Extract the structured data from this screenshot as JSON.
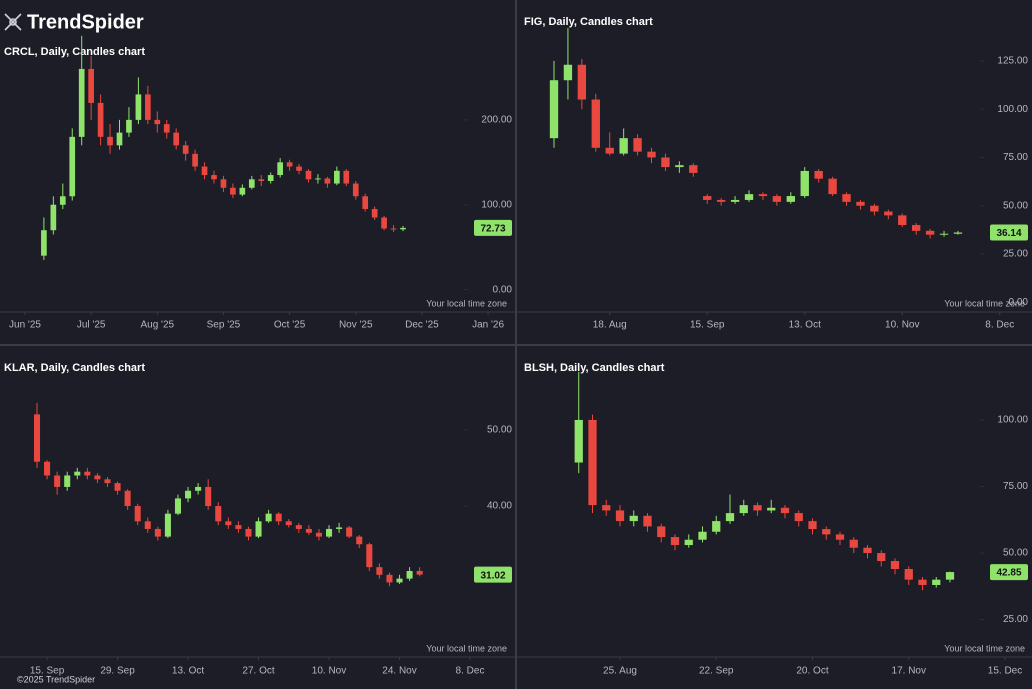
{
  "brand": "TrendSpider",
  "copyright": "©2025 TrendSpider",
  "chart_data": [
    {
      "type": "candlestick",
      "title": "CRCL, Daily, Candles chart",
      "note": "Your local time zone",
      "up_color": "#8fe36b",
      "down_color": "#e8483f",
      "last_price": 72.73,
      "ylim": [
        -24,
        300
      ],
      "yticks": [
        {
          "value": 0,
          "label": "0.00"
        },
        {
          "value": 100,
          "label": "100.00"
        },
        {
          "value": 200,
          "label": "200.00"
        }
      ],
      "categories": [
        "Jun '25",
        null,
        null,
        null,
        null,
        null,
        null,
        "Jul '25",
        null,
        null,
        null,
        null,
        null,
        null,
        "Aug '25",
        null,
        null,
        null,
        null,
        null,
        null,
        "Sep '25",
        null,
        null,
        null,
        null,
        null,
        null,
        "Oct '25",
        null,
        null,
        null,
        null,
        null,
        null,
        "Nov '25",
        null,
        null,
        null,
        null,
        null,
        null,
        "Dec '25",
        null,
        null,
        null,
        null,
        null,
        null,
        "Jan '26"
      ],
      "candles": [
        null,
        null,
        [
          40,
          85,
          35,
          70
        ],
        [
          70,
          110,
          65,
          100
        ],
        [
          100,
          125,
          95,
          110
        ],
        [
          110,
          190,
          105,
          180
        ],
        [
          180,
          299,
          170,
          260
        ],
        [
          260,
          275,
          200,
          220
        ],
        [
          220,
          230,
          170,
          180
        ],
        [
          180,
          195,
          160,
          170
        ],
        [
          170,
          200,
          165,
          185
        ],
        [
          185,
          215,
          180,
          200
        ],
        [
          200,
          250,
          195,
          230
        ],
        [
          230,
          240,
          195,
          200
        ],
        [
          200,
          210,
          185,
          195
        ],
        [
          195,
          200,
          178,
          185
        ],
        [
          185,
          190,
          165,
          170
        ],
        [
          170,
          175,
          152,
          160
        ],
        [
          160,
          165,
          140,
          145
        ],
        [
          145,
          150,
          130,
          135
        ],
        [
          135,
          140,
          125,
          130
        ],
        [
          130,
          134,
          115,
          120
        ],
        [
          120,
          125,
          108,
          112
        ],
        [
          112,
          124,
          110,
          120
        ],
        [
          120,
          134,
          118,
          130
        ],
        [
          130,
          135,
          122,
          128
        ],
        [
          128,
          138,
          125,
          135
        ],
        [
          135,
          155,
          132,
          150
        ],
        [
          150,
          153,
          140,
          145
        ],
        [
          145,
          148,
          136,
          140
        ],
        [
          140,
          142,
          126,
          130
        ],
        [
          130,
          136,
          125,
          131
        ],
        [
          131,
          133,
          120,
          125
        ],
        [
          125,
          145,
          123,
          140
        ],
        [
          140,
          142,
          122,
          125
        ],
        [
          125,
          128,
          106,
          110
        ],
        [
          110,
          113,
          92,
          95
        ],
        [
          95,
          98,
          82,
          85
        ],
        [
          85,
          87,
          70,
          72
        ],
        [
          72,
          76,
          68,
          71
        ],
        [
          71,
          75,
          69,
          72.73
        ],
        null,
        null,
        null,
        null,
        null,
        null,
        null,
        null,
        null
      ]
    },
    {
      "type": "candlestick",
      "title": "FIG, Daily, Candles chart",
      "note": "Your local time zone",
      "up_color": "#8fe36b",
      "down_color": "#e8483f",
      "last_price": 36.14,
      "ylim": [
        -4,
        141
      ],
      "yticks": [
        {
          "value": 0,
          "label": "0.00"
        },
        {
          "value": 25,
          "label": "25.00"
        },
        {
          "value": 50,
          "label": "50.00"
        },
        {
          "value": 75,
          "label": "75.00"
        },
        {
          "value": 100,
          "label": "100.00"
        },
        {
          "value": 125,
          "label": "125.00"
        }
      ],
      "categories": [
        null,
        null,
        null,
        null,
        "18. Aug",
        null,
        null,
        null,
        null,
        null,
        null,
        "15. Sep",
        null,
        null,
        null,
        null,
        null,
        null,
        "13. Oct",
        null,
        null,
        null,
        null,
        null,
        null,
        "10. Nov",
        null,
        null,
        null,
        null,
        null,
        null,
        "8. Dec"
      ],
      "candles": [
        [
          85,
          125,
          80,
          115
        ],
        [
          115,
          142,
          105,
          123
        ],
        [
          123,
          126,
          100,
          105
        ],
        [
          105,
          108,
          78,
          80
        ],
        [
          80,
          88,
          76,
          77
        ],
        [
          77,
          90,
          76,
          85
        ],
        [
          85,
          87,
          76,
          78
        ],
        [
          78,
          80,
          72,
          75
        ],
        [
          75,
          77,
          68,
          70
        ],
        [
          70,
          73,
          67,
          71
        ],
        [
          71,
          72,
          65,
          67
        ],
        [
          55,
          56,
          51,
          53
        ],
        [
          53,
          54,
          50,
          52
        ],
        [
          52,
          55,
          51,
          53
        ],
        [
          53,
          58,
          52,
          56
        ],
        [
          56,
          57,
          53,
          55
        ],
        [
          55,
          56,
          50,
          52
        ],
        [
          52,
          57,
          51,
          55
        ],
        [
          55,
          70,
          54,
          68
        ],
        [
          68,
          69,
          62,
          64
        ],
        [
          64,
          65,
          55,
          56
        ],
        [
          56,
          57,
          50,
          52
        ],
        [
          52,
          53,
          48,
          50
        ],
        [
          50,
          51,
          45,
          47
        ],
        [
          47,
          48,
          43,
          45
        ],
        [
          45,
          46,
          39,
          40
        ],
        [
          40,
          41,
          35,
          37
        ],
        [
          37,
          38,
          33,
          35
        ],
        [
          35,
          37,
          34,
          35.5
        ],
        [
          35.5,
          37,
          35,
          36.14
        ],
        null,
        null,
        null
      ]
    },
    {
      "type": "candlestick",
      "title": "KLAR, Daily, Candles chart",
      "note": "Your local time zone",
      "up_color": "#8fe36b",
      "down_color": "#e8483f",
      "last_price": 31.02,
      "ylim": [
        20.5,
        56.5
      ],
      "yticks": [
        {
          "value": 40,
          "label": "40.00"
        },
        {
          "value": 50,
          "label": "50.00"
        }
      ],
      "categories": [
        null,
        "15. Sep",
        null,
        null,
        null,
        null,
        null,
        null,
        "29. Sep",
        null,
        null,
        null,
        null,
        null,
        null,
        "13. Oct",
        null,
        null,
        null,
        null,
        null,
        null,
        "27. Oct",
        null,
        null,
        null,
        null,
        null,
        null,
        "10. Nov",
        null,
        null,
        null,
        null,
        null,
        null,
        "24. Nov",
        null,
        null,
        null,
        null,
        null,
        null,
        "8. Dec",
        null
      ],
      "candles": [
        [
          52,
          53.5,
          45,
          45.8
        ],
        [
          45.8,
          46,
          43.5,
          44
        ],
        [
          44,
          44.5,
          41.5,
          42.5
        ],
        [
          42.5,
          44.5,
          42,
          44
        ],
        [
          44,
          45,
          43.5,
          44.5
        ],
        [
          44.5,
          45,
          43.5,
          44
        ],
        [
          44,
          44.3,
          43,
          43.5
        ],
        [
          43.5,
          43.8,
          42.5,
          43
        ],
        [
          43,
          43.2,
          41.5,
          42
        ],
        [
          42,
          42.2,
          39.5,
          40
        ],
        [
          40,
          40.3,
          37.5,
          38
        ],
        [
          38,
          38.5,
          36.5,
          37
        ],
        [
          37,
          37.3,
          35.5,
          36
        ],
        [
          36,
          39.5,
          35.8,
          39
        ],
        [
          39,
          41.5,
          38.8,
          41
        ],
        [
          41,
          42.5,
          40.5,
          42
        ],
        [
          42,
          43,
          41.5,
          42.5
        ],
        [
          42.5,
          43.5,
          39.5,
          40
        ],
        [
          40,
          40.5,
          37.5,
          38
        ],
        [
          38,
          38.5,
          37,
          37.5
        ],
        [
          37.5,
          38,
          36.5,
          37
        ],
        [
          37,
          37.3,
          35.5,
          36
        ],
        [
          36,
          38.5,
          35.8,
          38
        ],
        [
          38,
          39.5,
          37.8,
          39
        ],
        [
          39,
          39.2,
          37.5,
          38
        ],
        [
          38,
          38.3,
          37.2,
          37.5
        ],
        [
          37.5,
          37.8,
          36.5,
          37
        ],
        [
          37,
          37.5,
          36.2,
          36.5
        ],
        [
          36.5,
          37,
          35.5,
          36
        ],
        [
          36,
          37.5,
          35.8,
          37
        ],
        [
          37,
          37.8,
          36.5,
          37.2
        ],
        [
          37.2,
          37.4,
          35.8,
          36
        ],
        [
          36,
          36.2,
          34.5,
          35
        ],
        [
          35,
          35.2,
          31.5,
          32
        ],
        [
          32,
          32.5,
          30.5,
          31
        ],
        [
          31,
          31.3,
          29.5,
          30
        ],
        [
          30,
          31,
          29.8,
          30.5
        ],
        [
          30.5,
          32,
          30.2,
          31.5
        ],
        [
          31.5,
          32,
          30.8,
          31.02
        ],
        null,
        null,
        null,
        null,
        null,
        null
      ]
    },
    {
      "type": "candlestick",
      "title": "BLSH, Daily, Candles chart",
      "note": "Your local time zone",
      "up_color": "#8fe36b",
      "down_color": "#e8483f",
      "last_price": 42.85,
      "ylim": [
        11.7,
        115
      ],
      "yticks": [
        {
          "value": 25,
          "label": "25.00"
        },
        {
          "value": 50,
          "label": "50.00"
        },
        {
          "value": 75,
          "label": "75.00"
        },
        {
          "value": 100,
          "label": "100.00"
        }
      ],
      "categories": [
        null,
        null,
        null,
        "25. Aug",
        null,
        null,
        null,
        null,
        null,
        null,
        "22. Sep",
        null,
        null,
        null,
        null,
        null,
        null,
        "20. Oct",
        null,
        null,
        null,
        null,
        null,
        null,
        "17. Nov",
        null,
        null,
        null,
        null,
        null,
        null,
        "15. Dec",
        null
      ],
      "candles": [
        [
          84,
          118,
          80,
          100
        ],
        [
          100,
          102,
          65,
          68
        ],
        [
          68,
          70,
          64,
          66
        ],
        [
          66,
          68,
          60,
          62
        ],
        [
          62,
          66,
          60,
          64
        ],
        [
          64,
          65,
          58,
          60
        ],
        [
          60,
          61,
          54,
          56
        ],
        [
          56,
          57,
          51,
          53
        ],
        [
          53,
          57,
          52,
          55
        ],
        [
          55,
          60,
          54,
          58
        ],
        [
          58,
          64,
          57,
          62
        ],
        [
          62,
          72,
          61,
          65
        ],
        [
          65,
          70,
          64,
          68
        ],
        [
          68,
          69,
          64,
          66
        ],
        [
          66,
          70,
          65,
          67
        ],
        [
          67,
          68,
          63,
          65
        ],
        [
          65,
          66,
          60,
          62
        ],
        [
          62,
          63,
          57,
          59
        ],
        [
          59,
          60,
          55,
          57
        ],
        [
          57,
          58,
          53,
          55
        ],
        [
          55,
          56,
          50,
          52
        ],
        [
          52,
          53,
          48,
          50
        ],
        [
          50,
          51,
          45,
          47
        ],
        [
          47,
          48,
          42,
          44
        ],
        [
          44,
          45,
          38,
          40
        ],
        [
          40,
          41,
          36,
          38
        ],
        [
          38,
          41,
          37,
          40
        ],
        [
          40,
          43,
          39,
          42.85
        ],
        null,
        null,
        null,
        null,
        null
      ]
    }
  ]
}
